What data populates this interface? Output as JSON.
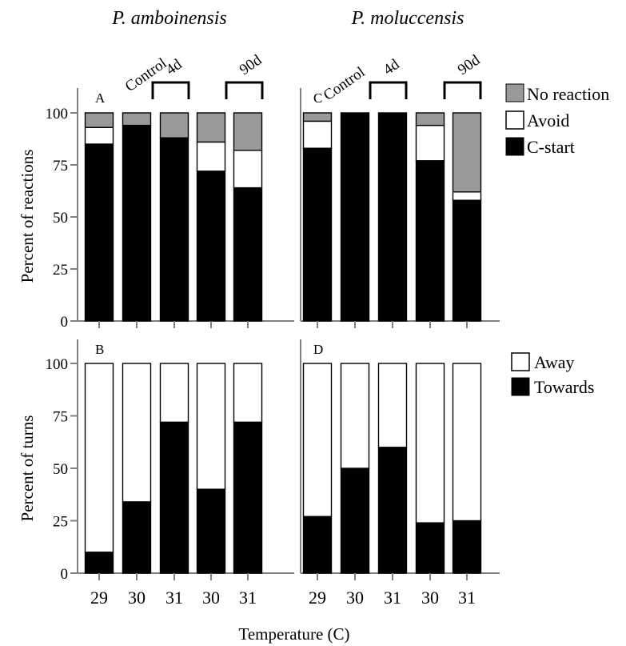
{
  "chart_data": [
    {
      "panel": "A",
      "type": "bar",
      "stacked": true,
      "species": "P. amboinensis",
      "ylabel": "Percent of reactions",
      "ylim": [
        0,
        100
      ],
      "yticks": [
        0,
        25,
        50,
        75,
        100
      ],
      "categories": [
        "29",
        "30",
        "31",
        "30",
        "31"
      ],
      "series": [
        {
          "name": "C-start",
          "values": [
            85,
            94,
            88,
            72,
            64
          ]
        },
        {
          "name": "Avoid",
          "values": [
            8,
            0,
            0,
            14,
            18
          ]
        },
        {
          "name": "No reaction",
          "values": [
            7,
            6,
            12,
            14,
            18
          ]
        }
      ]
    },
    {
      "panel": "C",
      "type": "bar",
      "stacked": true,
      "species": "P. moluccensis",
      "ylim": [
        0,
        100
      ],
      "categories": [
        "29",
        "30",
        "31",
        "30",
        "31"
      ],
      "series": [
        {
          "name": "C-start",
          "values": [
            83,
            100,
            100,
            77,
            58
          ]
        },
        {
          "name": "Avoid",
          "values": [
            13,
            0,
            0,
            17,
            4
          ]
        },
        {
          "name": "No reaction",
          "values": [
            4,
            0,
            0,
            6,
            38
          ]
        }
      ]
    },
    {
      "panel": "B",
      "type": "bar",
      "stacked": true,
      "species": "P. amboinensis",
      "ylabel": "Percent of turns",
      "ylim": [
        0,
        100
      ],
      "yticks": [
        0,
        25,
        50,
        75,
        100
      ],
      "categories": [
        "29",
        "30",
        "31",
        "30",
        "31"
      ],
      "series": [
        {
          "name": "Towards",
          "values": [
            10,
            34,
            72,
            40,
            72
          ]
        },
        {
          "name": "Away",
          "values": [
            90,
            66,
            28,
            60,
            28
          ]
        }
      ]
    },
    {
      "panel": "D",
      "type": "bar",
      "stacked": true,
      "species": "P. moluccensis",
      "ylim": [
        0,
        100
      ],
      "categories": [
        "29",
        "30",
        "31",
        "30",
        "31"
      ],
      "series": [
        {
          "name": "Towards",
          "values": [
            27,
            50,
            60,
            24,
            25
          ]
        },
        {
          "name": "Away",
          "values": [
            73,
            50,
            40,
            76,
            75
          ]
        }
      ]
    }
  ],
  "header": {
    "species_left": "P. amboinensis",
    "species_right": "P. moluccensis",
    "treatments": [
      "Control",
      "4d",
      "90d"
    ]
  },
  "legend_top": [
    "No reaction",
    "Avoid",
    "C-start"
  ],
  "legend_bottom": [
    "Away",
    "Towards"
  ],
  "xlabel": "Temperature (C)",
  "colors": {
    "c_start": "#000000",
    "avoid": "#ffffff",
    "no_reaction": "#999999",
    "towards": "#000000",
    "away": "#ffffff",
    "axis": "#808080"
  }
}
